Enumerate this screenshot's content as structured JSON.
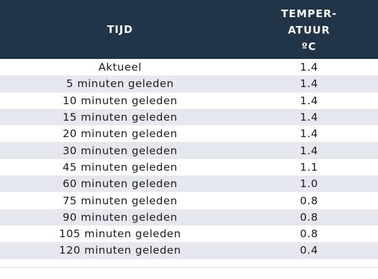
{
  "table": {
    "headers": {
      "time": "TIJD",
      "temp_line1": "TEMPER-",
      "temp_line2": "ATUUR",
      "temp_unit": "ºC"
    },
    "rows": [
      {
        "time": "Aktueel",
        "temp": "1.4"
      },
      {
        "time": "5 minuten geleden",
        "temp": "1.4"
      },
      {
        "time": "10 minuten geleden",
        "temp": "1.4"
      },
      {
        "time": "15 minuten geleden",
        "temp": "1.4"
      },
      {
        "time": "20 minuten geleden",
        "temp": "1.4"
      },
      {
        "time": "30 minuten geleden",
        "temp": "1.4"
      },
      {
        "time": "45 minuten geleden",
        "temp": "1.1"
      },
      {
        "time": "60 minuten geleden",
        "temp": "1.0"
      },
      {
        "time": "75 minuten geleden",
        "temp": "0.8"
      },
      {
        "time": "90 minuten geleden",
        "temp": "0.8"
      },
      {
        "time": "105 minuten geleden",
        "temp": "0.8"
      },
      {
        "time": "120 minuten geleden",
        "temp": "0.4"
      }
    ]
  },
  "colors": {
    "header_bg": "#223447",
    "stripe_bg": "#e7e7ef"
  }
}
